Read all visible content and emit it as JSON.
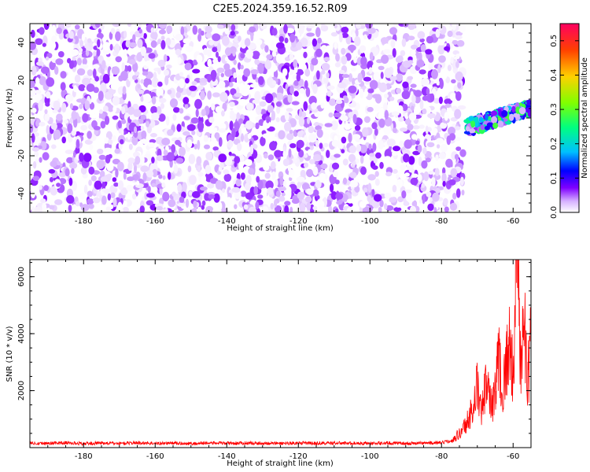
{
  "chart_data": [
    {
      "type": "heatmap",
      "title": "C2E5.2024.359.16.52.R09",
      "xlabel": "Height of straight line (km)",
      "ylabel": "Frequency (Hz)",
      "xlim": [
        -195,
        -55
      ],
      "ylim": [
        -50,
        50
      ],
      "x_ticks": [
        -180,
        -160,
        -140,
        -120,
        -100,
        -80,
        -60
      ],
      "y_ticks": [
        -40,
        -20,
        0,
        20,
        40
      ],
      "grid": false,
      "colorbar": {
        "label": "Normalized spectral amplitude",
        "range": [
          0.0,
          0.55
        ],
        "ticks": [
          "0.0",
          "0.1",
          "0.2",
          "0.3",
          "0.4",
          "0.5"
        ],
        "colormap": [
          "#ffffff",
          "#d6b0ff",
          "#7f00ff",
          "#0000ff",
          "#00c0ff",
          "#00ff80",
          "#80ff00",
          "#ffd000",
          "#ff4000",
          "#ff0060"
        ]
      },
      "regions": [
        {
          "name": "noise floor",
          "x_range": [
            -195,
            -74
          ],
          "freq_range": [
            -50,
            50
          ],
          "amplitude_range": [
            0.0,
            0.12
          ]
        },
        {
          "name": "signal",
          "x_range": [
            -73,
            -55
          ],
          "freq_start": -5,
          "freq_end": 5,
          "amplitude_range": [
            0.05,
            0.35
          ]
        }
      ]
    },
    {
      "type": "line",
      "xlabel": "Height of straight line (km)",
      "ylabel": "SNR (10 * v/v)",
      "xlim": [
        -195,
        -55
      ],
      "ylim": [
        0,
        6600
      ],
      "x_ticks": [
        -180,
        -160,
        -140,
        -120,
        -100,
        -80,
        -60
      ],
      "y_ticks": [
        2000,
        4000,
        6000
      ],
      "grid": false,
      "series": [
        {
          "color": "#ff0000",
          "x": [
            -195,
            -190,
            -185,
            -180,
            -175,
            -170,
            -165,
            -160,
            -155,
            -150,
            -145,
            -140,
            -135,
            -130,
            -125,
            -120,
            -115,
            -110,
            -105,
            -100,
            -95,
            -90,
            -85,
            -80,
            -77,
            -75,
            -73,
            -71,
            -70,
            -69,
            -68,
            -67,
            -66,
            -65,
            -64,
            -63,
            -62,
            -61,
            -60,
            -59,
            -58,
            -57,
            -56,
            -55
          ],
          "values": [
            160,
            150,
            170,
            140,
            160,
            150,
            170,
            150,
            160,
            140,
            165,
            150,
            160,
            155,
            150,
            160,
            150,
            160,
            155,
            150,
            160,
            150,
            160,
            170,
            250,
            400,
            700,
            1200,
            1800,
            1000,
            1500,
            2200,
            1200,
            1600,
            2800,
            1500,
            2400,
            3000,
            2000,
            6600,
            2400,
            3800,
            1800,
            3000
          ]
        }
      ]
    }
  ]
}
